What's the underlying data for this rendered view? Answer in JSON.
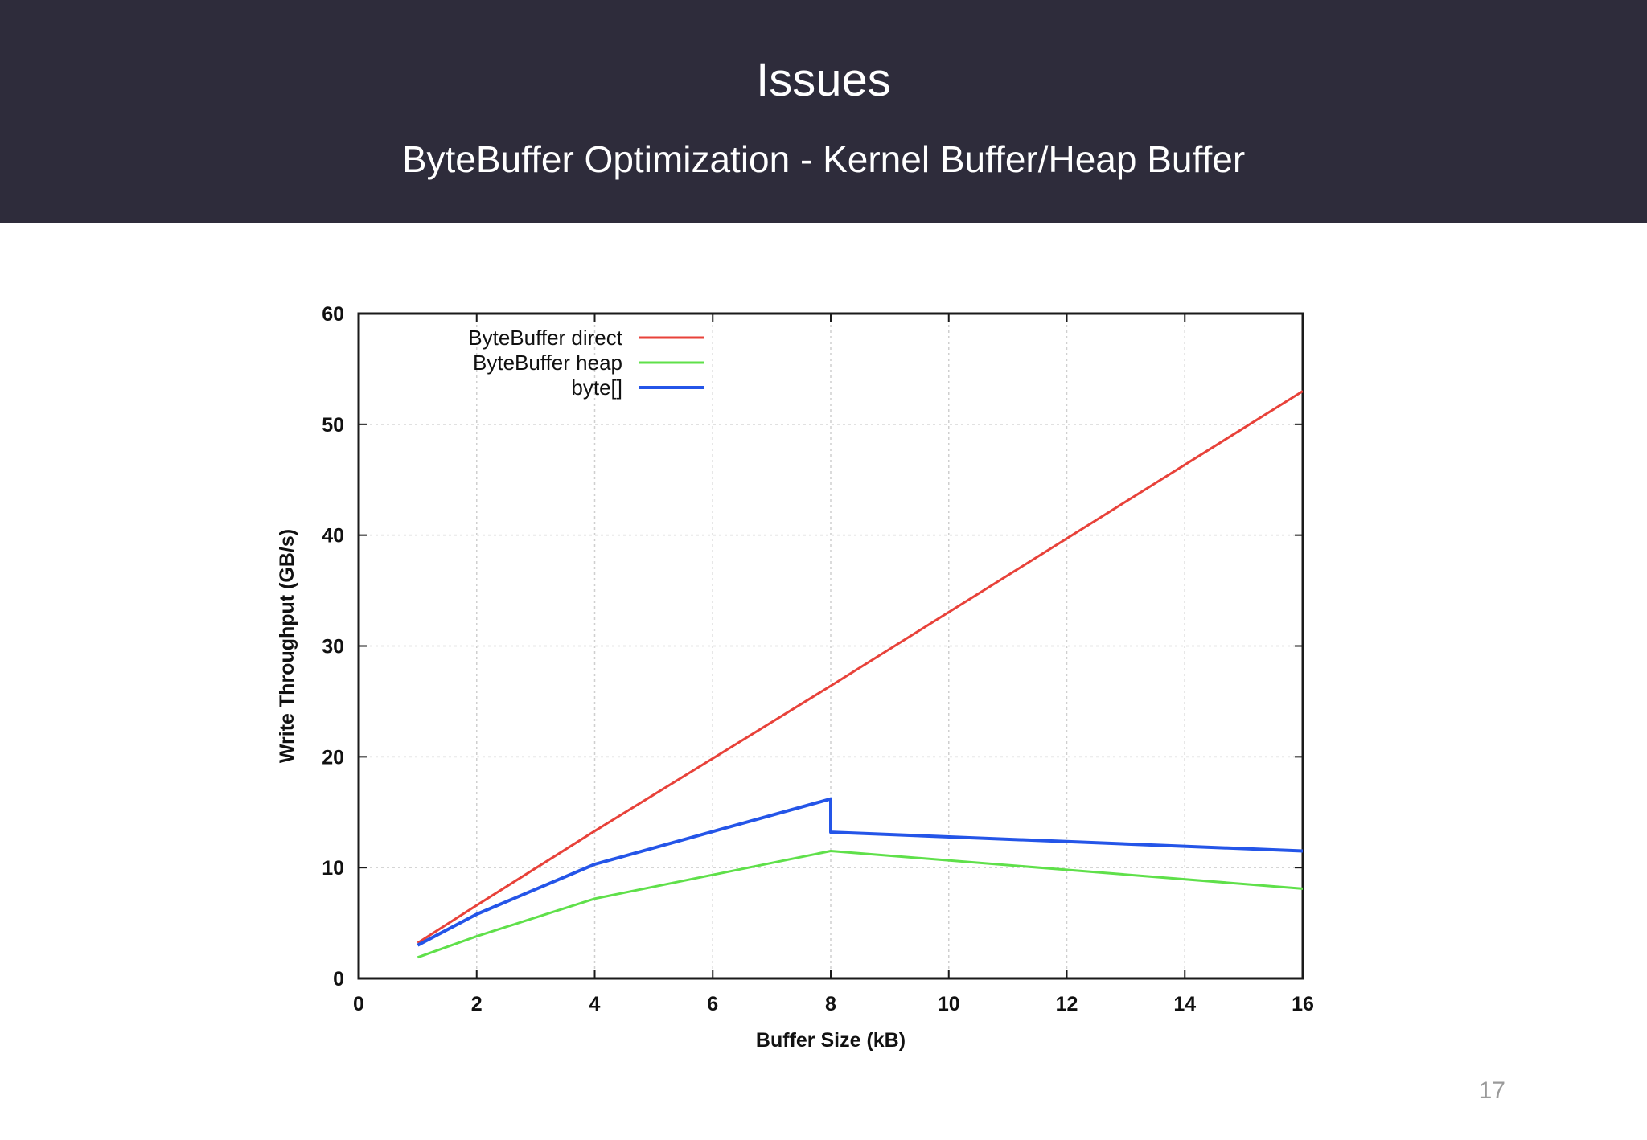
{
  "slide": {
    "title": "Issues",
    "subtitle": "ByteBuffer Optimization - Kernel Buffer/Heap Buffer",
    "page_number": "17"
  },
  "colors": {
    "header_bg": "#2e2c3b",
    "series_direct": "#e8423a",
    "series_heap": "#5fe04a",
    "series_bytearray": "#2455e8"
  },
  "chart_data": {
    "type": "line",
    "title": "",
    "xlabel": "Buffer Size (kB)",
    "ylabel": "Write Throughput (GB/s)",
    "xlim": [
      0,
      16
    ],
    "ylim": [
      0,
      60
    ],
    "xticks": [
      "0",
      "2",
      "4",
      "6",
      "8",
      "10",
      "12",
      "14",
      "16"
    ],
    "yticks": [
      "0",
      "10",
      "20",
      "30",
      "40",
      "50",
      "60"
    ],
    "grid": true,
    "legend_position": "top-left",
    "series": [
      {
        "name": "ByteBuffer direct",
        "color": "#e8423a",
        "points": [
          [
            1,
            3.2
          ],
          [
            2,
            6.6
          ],
          [
            4,
            13.3
          ],
          [
            8,
            26.4
          ],
          [
            16,
            53.0
          ]
        ]
      },
      {
        "name": "ByteBuffer heap",
        "color": "#5fe04a",
        "points": [
          [
            1,
            1.9
          ],
          [
            2,
            3.8
          ],
          [
            4,
            7.2
          ],
          [
            8,
            11.5
          ],
          [
            16,
            8.1
          ]
        ]
      },
      {
        "name": "byte[]",
        "color": "#2455e8",
        "points": [
          [
            1,
            3.0
          ],
          [
            2,
            5.8
          ],
          [
            4,
            10.3
          ],
          [
            8,
            16.2
          ],
          [
            8,
            13.2
          ],
          [
            16,
            11.5
          ]
        ]
      }
    ]
  }
}
